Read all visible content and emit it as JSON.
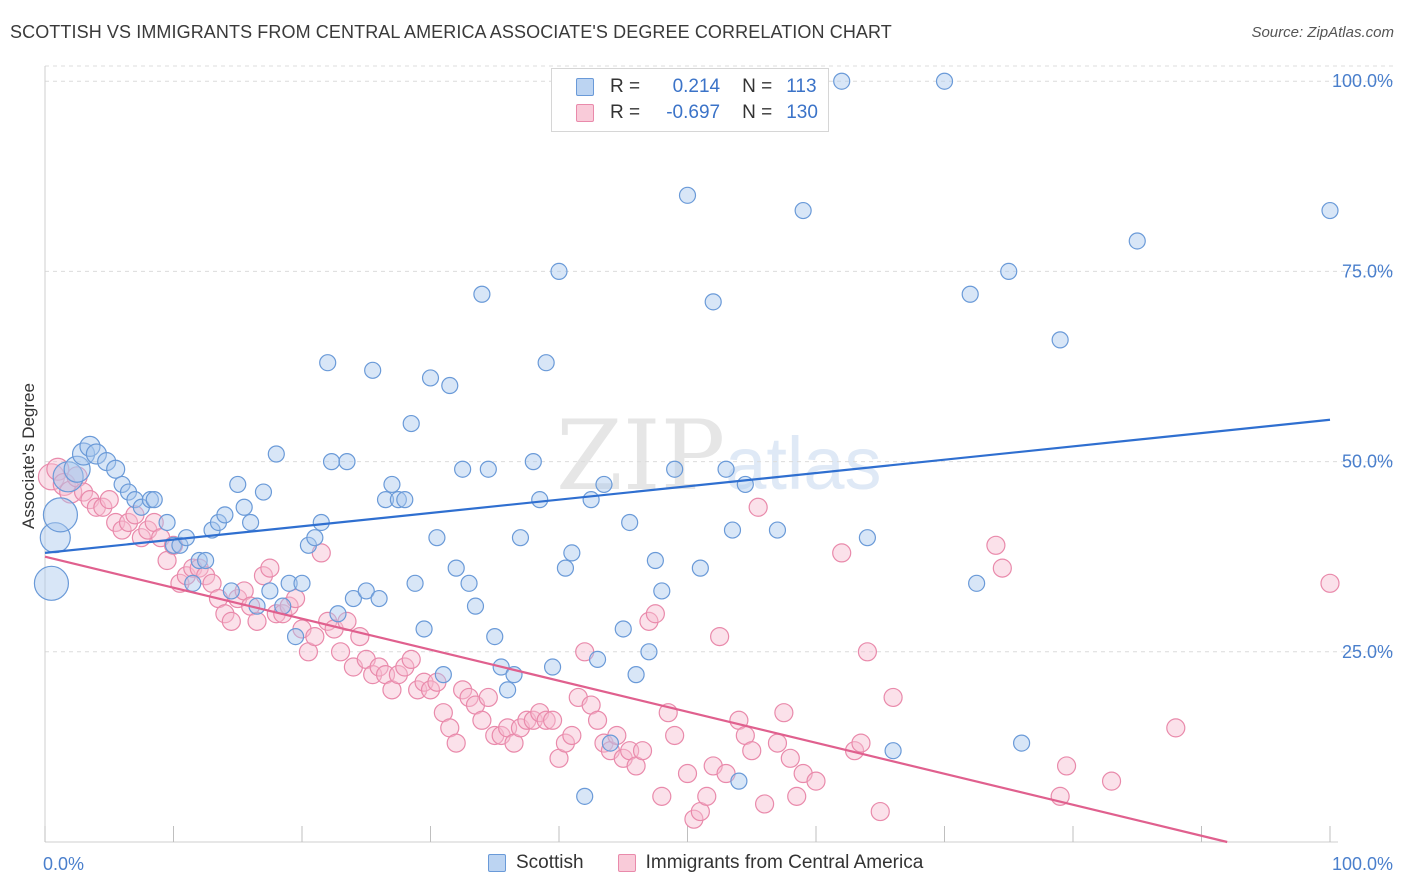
{
  "header": {
    "title": "SCOTTISH VS IMMIGRANTS FROM CENTRAL AMERICA ASSOCIATE'S DEGREE CORRELATION CHART",
    "source": "Source: ZipAtlas.com"
  },
  "watermark": {
    "zip": "ZIP",
    "atlas": "atlas"
  },
  "legend": {
    "rows": [
      {
        "r_label": "R =",
        "r_value": "0.214",
        "n_label": "N =",
        "n_value": "113"
      },
      {
        "r_label": "R =",
        "r_value": "-0.697",
        "n_label": "N =",
        "n_value": "130"
      }
    ]
  },
  "bottom_legend": {
    "series1": "Scottish",
    "series2": "Immigrants from Central America"
  },
  "colors": {
    "blue_fill": "#a8c8ee",
    "blue_stroke": "#6a9ad8",
    "blue_line": "#2f6fd0",
    "pink_fill": "#f6bcd0",
    "pink_stroke": "#e98aab",
    "pink_line": "#e0608e",
    "tick_text": "#4a7fcc"
  },
  "chart_data": {
    "type": "scatter",
    "title": "SCOTTISH VS IMMIGRANTS FROM CENTRAL AMERICA ASSOCIATE'S DEGREE CORRELATION CHART",
    "xlabel": "",
    "ylabel": "Associate's Degree",
    "xlim": [
      0,
      100
    ],
    "ylim": [
      0,
      102
    ],
    "x_tick_labels": [
      "0.0%",
      "100.0%"
    ],
    "y_ticks": [
      25,
      50,
      75,
      100
    ],
    "y_tick_labels": [
      "25.0%",
      "50.0%",
      "75.0%",
      "100.0%"
    ],
    "grid": true,
    "legend_position": "top-center",
    "series": [
      {
        "name": "Scottish",
        "R": 0.214,
        "N": 113,
        "trend": {
          "x": [
            0,
            100
          ],
          "y": [
            38,
            55.5
          ]
        },
        "points": [
          [
            0.5,
            34,
            16
          ],
          [
            0.8,
            40,
            14
          ],
          [
            1.2,
            43,
            16
          ],
          [
            1.8,
            48,
            14
          ],
          [
            2.5,
            49,
            12
          ],
          [
            3,
            51,
            10
          ],
          [
            3.5,
            52,
            9
          ],
          [
            4,
            51,
            9
          ],
          [
            4.8,
            50,
            8
          ],
          [
            5.5,
            49,
            8
          ],
          [
            6,
            47,
            7
          ],
          [
            6.5,
            46,
            7
          ],
          [
            7,
            45,
            7
          ],
          [
            7.5,
            44,
            7
          ],
          [
            8.2,
            45,
            7
          ],
          [
            8.5,
            45,
            7
          ],
          [
            9.5,
            42,
            7
          ],
          [
            10,
            39,
            7
          ],
          [
            10.5,
            39,
            7
          ],
          [
            11,
            40,
            7
          ],
          [
            11.5,
            34,
            7
          ],
          [
            12,
            37,
            7
          ],
          [
            12.5,
            37,
            7
          ],
          [
            13,
            41,
            7
          ],
          [
            13.5,
            42,
            7
          ],
          [
            14,
            43,
            7
          ],
          [
            14.5,
            33,
            7
          ],
          [
            15,
            47,
            7
          ],
          [
            15.5,
            44,
            7
          ],
          [
            16,
            42,
            7
          ],
          [
            16.5,
            31,
            7
          ],
          [
            17,
            46,
            7
          ],
          [
            17.5,
            33,
            7
          ],
          [
            18,
            51,
            7
          ],
          [
            18.5,
            31,
            7
          ],
          [
            19,
            34,
            7
          ],
          [
            19.5,
            27,
            7
          ],
          [
            20,
            34,
            7
          ],
          [
            20.5,
            39,
            7
          ],
          [
            21,
            40,
            7
          ],
          [
            21.5,
            42,
            7
          ],
          [
            22,
            63,
            7
          ],
          [
            22.3,
            50,
            7
          ],
          [
            22.8,
            30,
            7
          ],
          [
            23.5,
            50,
            7
          ],
          [
            24,
            32,
            7
          ],
          [
            25,
            33,
            7
          ],
          [
            25.5,
            62,
            7
          ],
          [
            26,
            32,
            7
          ],
          [
            26.5,
            45,
            7
          ],
          [
            27,
            47,
            7
          ],
          [
            27.5,
            45,
            7
          ],
          [
            28,
            45,
            7
          ],
          [
            28.5,
            55,
            7
          ],
          [
            28.8,
            34,
            7
          ],
          [
            29.5,
            28,
            7
          ],
          [
            30,
            61,
            7
          ],
          [
            30.5,
            40,
            7
          ],
          [
            31,
            22,
            7
          ],
          [
            31.5,
            60,
            7
          ],
          [
            32,
            36,
            7
          ],
          [
            32.5,
            49,
            7
          ],
          [
            33,
            34,
            7
          ],
          [
            33.5,
            31,
            7
          ],
          [
            34,
            72,
            7
          ],
          [
            34.5,
            49,
            7
          ],
          [
            35,
            27,
            7
          ],
          [
            35.5,
            23,
            7
          ],
          [
            36,
            20,
            7
          ],
          [
            36.5,
            22,
            7
          ],
          [
            37,
            40,
            7
          ],
          [
            38,
            50,
            7
          ],
          [
            38.5,
            45,
            7
          ],
          [
            39,
            63,
            7
          ],
          [
            39.5,
            23,
            7
          ],
          [
            40,
            75,
            7
          ],
          [
            40.5,
            36,
            7
          ],
          [
            41,
            38,
            7
          ],
          [
            42,
            6,
            7
          ],
          [
            42.5,
            45,
            7
          ],
          [
            43,
            24,
            7
          ],
          [
            43.5,
            47,
            7
          ],
          [
            44,
            13,
            7
          ],
          [
            45,
            28,
            7
          ],
          [
            45.5,
            42,
            7
          ],
          [
            46,
            22,
            7
          ],
          [
            47,
            25,
            7
          ],
          [
            47.5,
            37,
            7
          ],
          [
            48,
            33,
            7
          ],
          [
            49,
            49,
            7
          ],
          [
            50,
            85,
            7
          ],
          [
            51,
            36,
            7
          ],
          [
            52,
            71,
            7
          ],
          [
            53,
            49,
            7
          ],
          [
            53.5,
            41,
            7
          ],
          [
            54,
            8,
            7
          ],
          [
            54.5,
            47,
            7
          ],
          [
            57,
            41,
            7
          ],
          [
            59,
            83,
            7
          ],
          [
            62,
            100,
            7
          ],
          [
            64,
            40,
            7
          ],
          [
            66,
            12,
            7
          ],
          [
            70,
            100,
            7
          ],
          [
            72,
            72,
            7
          ],
          [
            72.5,
            34,
            7
          ],
          [
            75,
            75,
            7
          ],
          [
            76,
            13,
            7
          ],
          [
            79,
            66,
            7
          ],
          [
            85,
            79,
            7
          ],
          [
            100,
            83,
            7
          ]
        ]
      },
      {
        "name": "Immigrants from Central America",
        "R": -0.697,
        "N": 130,
        "trend": {
          "x": [
            0,
            92
          ],
          "y": [
            37.5,
            0
          ]
        },
        "points": [
          [
            0.5,
            48,
            12
          ],
          [
            1,
            49,
            10
          ],
          [
            1.5,
            47,
            10
          ],
          [
            2,
            46,
            10
          ],
          [
            2.5,
            48,
            9
          ],
          [
            3,
            46,
            8
          ],
          [
            3.5,
            45,
            8
          ],
          [
            4,
            44,
            8
          ],
          [
            4.5,
            44,
            8
          ],
          [
            5,
            45,
            8
          ],
          [
            5.5,
            42,
            8
          ],
          [
            6,
            41,
            8
          ],
          [
            6.5,
            42,
            8
          ],
          [
            7,
            43,
            8
          ],
          [
            7.5,
            40,
            8
          ],
          [
            8,
            41,
            8
          ],
          [
            8.5,
            42,
            8
          ],
          [
            9,
            40,
            8
          ],
          [
            9.5,
            37,
            8
          ],
          [
            10,
            39,
            8
          ],
          [
            10.5,
            34,
            8
          ],
          [
            11,
            35,
            8
          ],
          [
            11.5,
            36,
            8
          ],
          [
            12,
            36,
            8
          ],
          [
            12.5,
            35,
            8
          ],
          [
            13,
            34,
            8
          ],
          [
            13.5,
            32,
            8
          ],
          [
            14,
            30,
            8
          ],
          [
            14.5,
            29,
            8
          ],
          [
            15,
            32,
            8
          ],
          [
            15.5,
            33,
            8
          ],
          [
            16,
            31,
            8
          ],
          [
            16.5,
            29,
            8
          ],
          [
            17,
            35,
            8
          ],
          [
            17.5,
            36,
            8
          ],
          [
            18,
            30,
            8
          ],
          [
            18.5,
            30,
            8
          ],
          [
            19,
            31,
            8
          ],
          [
            19.5,
            32,
            8
          ],
          [
            20,
            28,
            8
          ],
          [
            20.5,
            25,
            8
          ],
          [
            21,
            27,
            8
          ],
          [
            21.5,
            38,
            8
          ],
          [
            22,
            29,
            8
          ],
          [
            22.5,
            28,
            8
          ],
          [
            23,
            25,
            8
          ],
          [
            23.5,
            29,
            8
          ],
          [
            24,
            23,
            8
          ],
          [
            24.5,
            27,
            8
          ],
          [
            25,
            24,
            8
          ],
          [
            25.5,
            22,
            8
          ],
          [
            26,
            23,
            8
          ],
          [
            26.5,
            22,
            8
          ],
          [
            27,
            20,
            8
          ],
          [
            27.5,
            22,
            8
          ],
          [
            28,
            23,
            8
          ],
          [
            28.5,
            24,
            8
          ],
          [
            29,
            20,
            8
          ],
          [
            29.5,
            21,
            8
          ],
          [
            30,
            20,
            8
          ],
          [
            30.5,
            21,
            8
          ],
          [
            31,
            17,
            8
          ],
          [
            31.5,
            15,
            8
          ],
          [
            32,
            13,
            8
          ],
          [
            32.5,
            20,
            8
          ],
          [
            33,
            19,
            8
          ],
          [
            33.5,
            18,
            8
          ],
          [
            34,
            16,
            8
          ],
          [
            34.5,
            19,
            8
          ],
          [
            35,
            14,
            8
          ],
          [
            35.5,
            14,
            8
          ],
          [
            36,
            15,
            8
          ],
          [
            36.5,
            13,
            8
          ],
          [
            37,
            15,
            8
          ],
          [
            37.5,
            16,
            8
          ],
          [
            38,
            16,
            8
          ],
          [
            38.5,
            17,
            8
          ],
          [
            39,
            16,
            8
          ],
          [
            39.5,
            16,
            8
          ],
          [
            40,
            11,
            8
          ],
          [
            40.5,
            13,
            8
          ],
          [
            41,
            14,
            8
          ],
          [
            41.5,
            19,
            8
          ],
          [
            42,
            25,
            8
          ],
          [
            42.5,
            18,
            8
          ],
          [
            43,
            16,
            8
          ],
          [
            43.5,
            13,
            8
          ],
          [
            44,
            12,
            8
          ],
          [
            44.5,
            14,
            8
          ],
          [
            45,
            11,
            8
          ],
          [
            45.5,
            12,
            8
          ],
          [
            46,
            10,
            8
          ],
          [
            46.5,
            12,
            8
          ],
          [
            47,
            29,
            8
          ],
          [
            47.5,
            30,
            8
          ],
          [
            48,
            6,
            8
          ],
          [
            48.5,
            17,
            8
          ],
          [
            49,
            14,
            8
          ],
          [
            50,
            9,
            8
          ],
          [
            50.5,
            3,
            8
          ],
          [
            51,
            4,
            8
          ],
          [
            51.5,
            6,
            8
          ],
          [
            52,
            10,
            8
          ],
          [
            52.5,
            27,
            8
          ],
          [
            53,
            9,
            8
          ],
          [
            54,
            16,
            8
          ],
          [
            54.5,
            14,
            8
          ],
          [
            55,
            12,
            8
          ],
          [
            55.5,
            44,
            8
          ],
          [
            56,
            5,
            8
          ],
          [
            57,
            13,
            8
          ],
          [
            57.5,
            17,
            8
          ],
          [
            58,
            11,
            8
          ],
          [
            58.5,
            6,
            8
          ],
          [
            59,
            9,
            8
          ],
          [
            60,
            8,
            8
          ],
          [
            62,
            38,
            8
          ],
          [
            63,
            12,
            8
          ],
          [
            63.5,
            13,
            8
          ],
          [
            64,
            25,
            8
          ],
          [
            65,
            4,
            8
          ],
          [
            66,
            19,
            8
          ],
          [
            74,
            39,
            8
          ],
          [
            74.5,
            36,
            8
          ],
          [
            79,
            6,
            8
          ],
          [
            79.5,
            10,
            8
          ],
          [
            83,
            8,
            8
          ],
          [
            88,
            15,
            8
          ],
          [
            100,
            34,
            8
          ]
        ]
      }
    ]
  }
}
